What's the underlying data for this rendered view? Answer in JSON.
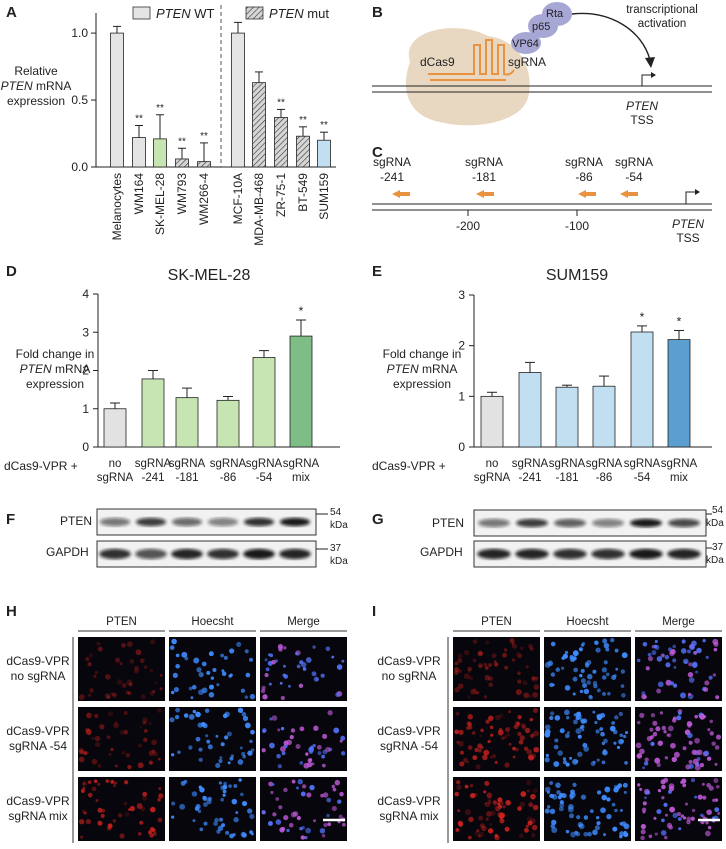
{
  "panel_labels": [
    "A",
    "B",
    "C",
    "D",
    "E",
    "F",
    "G",
    "H",
    "I"
  ],
  "colors": {
    "wt_bar": "#e4e4e4",
    "mut_bar": "#c8c8c8",
    "green": "#c7e4b3",
    "green_dark": "#7fbd86",
    "blue": "#c2dff2",
    "blue_dark": "#5a9fd0",
    "orange": "#e9923f",
    "purple": "#a7a7d6",
    "dcas9": "#e8d8c2"
  },
  "panelA": {
    "legend_wt_gene": "PTEN",
    "legend_wt_suffix": " WT",
    "legend_mut_gene": "PTEN",
    "legend_mut_suffix": " mut",
    "ylabel_line1": "Relative",
    "ylabel_gene": "PTEN",
    "ylabel_line2_suffix": " mRNA",
    "ylabel_line3": "expression",
    "sig": "**"
  },
  "panelB": {
    "protein1": "dCas9",
    "protein2": "VP64",
    "protein3": "p65",
    "protein4": "Rta",
    "guide": "sgRNA",
    "activation_line1": "transcriptional",
    "activation_line2": "activation",
    "gene": "PTEN",
    "tss": "TSS"
  },
  "panelC": {
    "sgrnas": [
      {
        "name": "sgRNA",
        "pos": "-241"
      },
      {
        "name": "sgRNA",
        "pos": "-181"
      },
      {
        "name": "sgRNA",
        "pos": "-86"
      },
      {
        "name": "sgRNA",
        "pos": "-54"
      }
    ],
    "ticks": [
      "-200",
      "-100"
    ],
    "gene": "PTEN",
    "tss": "TSS"
  },
  "panelD": {
    "title": "SK-MEL-28",
    "ylabel_line1": "Fold change in",
    "ylabel_gene": "PTEN",
    "ylabel_line2_suffix": " mRNA",
    "ylabel_line3": "expression",
    "row_label": "dCas9-VPR +",
    "sig": "*"
  },
  "panelE": {
    "title": "SUM159",
    "ylabel_line1": "Fold change in",
    "ylabel_gene": "PTEN",
    "ylabel_line2_suffix": " mRNA",
    "ylabel_line3": "expression",
    "row_label": "dCas9-VPR +",
    "sig": "*"
  },
  "blots": {
    "row1": "PTEN",
    "row2": "GAPDH",
    "size1": "54",
    "size2": "37",
    "unit": "kDa"
  },
  "micro": {
    "headers": [
      "PTEN",
      "Hoecsht",
      "Merge"
    ],
    "rows": [
      {
        "line1": "dCas9-VPR",
        "line2": "no sgRNA"
      },
      {
        "line1": "dCas9-VPR",
        "line2": "sgRNA -54"
      },
      {
        "line1": "dCas9-VPR",
        "line2": "sgRNA mix"
      }
    ]
  },
  "chart_data": [
    {
      "type": "bar",
      "panel": "A",
      "ylim": [
        0,
        1.15
      ],
      "yticks": [
        "0.0",
        "0.5",
        "1.0"
      ],
      "categories": [
        "Melanocytes",
        "WM164",
        "SK-MEL-28",
        "WM793",
        "WM266-4",
        "MCF-10A",
        "MDA-MB-468",
        "ZR-75-1",
        "BT-549",
        "SUM159"
      ],
      "values": [
        1.0,
        0.22,
        0.21,
        0.06,
        0.04,
        1.0,
        0.63,
        0.37,
        0.23,
        0.2
      ],
      "errors": [
        0.05,
        0.09,
        0.18,
        0.08,
        0.14,
        0.08,
        0.08,
        0.06,
        0.07,
        0.06
      ],
      "significant": [
        false,
        true,
        true,
        true,
        true,
        false,
        false,
        true,
        true,
        true
      ],
      "groups": [
        "WT",
        "WT",
        "WT",
        "mut",
        "mut",
        "WT",
        "mut",
        "mut",
        "mut",
        "WT"
      ]
    },
    {
      "type": "bar",
      "panel": "D",
      "title": "SK-MEL-28",
      "ylim": [
        0,
        4
      ],
      "yticks": [
        "0",
        "1",
        "2",
        "3",
        "4"
      ],
      "categories": [
        [
          "no",
          "sgRNA"
        ],
        [
          "sgRNA",
          "-241"
        ],
        [
          "sgRNA",
          "-181"
        ],
        [
          "sgRNA",
          "-86"
        ],
        [
          "sgRNA",
          "-54"
        ],
        [
          "sgRNA",
          "mix"
        ]
      ],
      "values": [
        1.0,
        1.78,
        1.29,
        1.22,
        2.34,
        2.9
      ],
      "errors": [
        0.15,
        0.22,
        0.25,
        0.1,
        0.18,
        0.42
      ],
      "significant": [
        false,
        false,
        false,
        false,
        false,
        true
      ]
    },
    {
      "type": "bar",
      "panel": "E",
      "title": "SUM159",
      "ylim": [
        0,
        3
      ],
      "yticks": [
        "0",
        "1",
        "2",
        "3"
      ],
      "categories": [
        [
          "no",
          "sgRNA"
        ],
        [
          "sgRNA",
          "-241"
        ],
        [
          "sgRNA",
          "-181"
        ],
        [
          "sgRNA",
          "-86"
        ],
        [
          "sgRNA",
          "-54"
        ],
        [
          "sgRNA",
          "mix"
        ]
      ],
      "values": [
        1.0,
        1.47,
        1.18,
        1.2,
        2.27,
        2.12
      ],
      "errors": [
        0.08,
        0.2,
        0.04,
        0.2,
        0.12,
        0.18
      ],
      "significant": [
        false,
        false,
        false,
        false,
        true,
        true
      ]
    }
  ]
}
